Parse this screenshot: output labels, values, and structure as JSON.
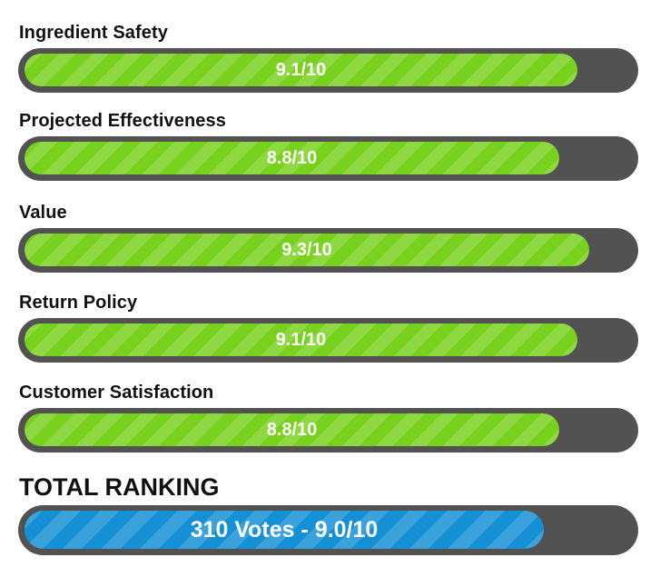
{
  "ratings": [
    {
      "label": "Ingredient Safety",
      "score": 9.1,
      "score_text": "9.1/10"
    },
    {
      "label": "Projected Effectiveness",
      "score": 8.8,
      "score_text": "8.8/10"
    },
    {
      "label": "Value",
      "score": 9.3,
      "score_text": "9.3/10"
    },
    {
      "label": "Return Policy",
      "score": 9.1,
      "score_text": "9.1/10"
    },
    {
      "label": "Customer Satisfaction",
      "score": 8.8,
      "score_text": "8.8/10"
    }
  ],
  "total": {
    "title": "TOTAL RANKING",
    "score": 9.0,
    "summary": "310 Votes - 9.0/10"
  },
  "colors": {
    "track": "#525252",
    "rating_fill": "#78d11d",
    "total_fill": "#1590d4",
    "label_text": "#111111",
    "bar_text": "#ffffff"
  }
}
